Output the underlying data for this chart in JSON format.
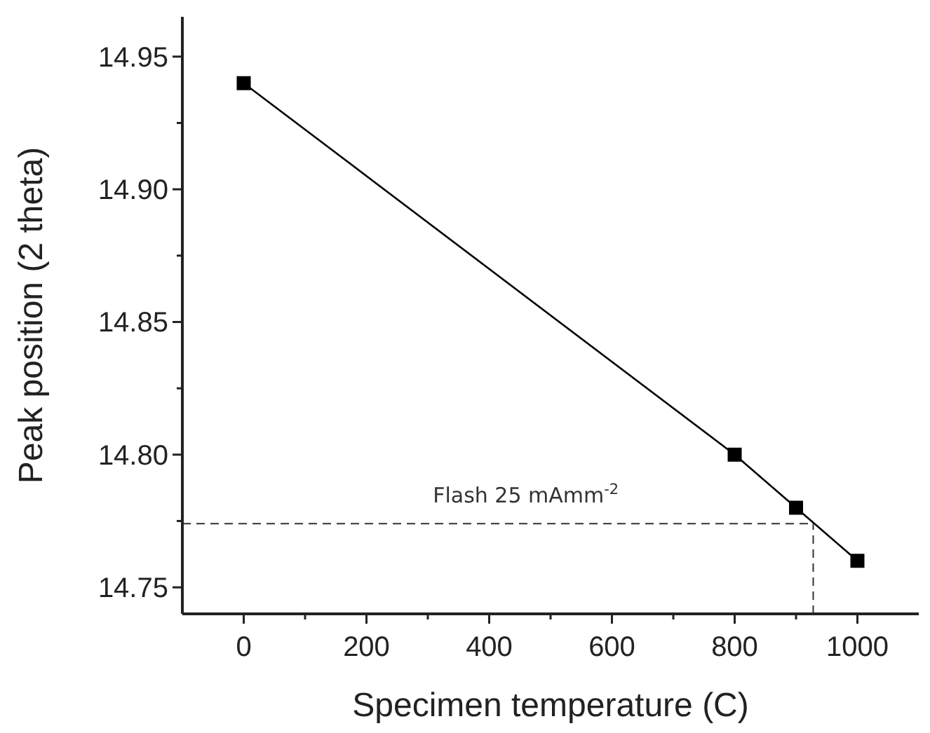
{
  "chart_data": {
    "type": "line",
    "xlabel": "Specimen temperature (C)",
    "ylabel": "Peak position (2 theta)",
    "x": [
      0,
      800,
      900,
      1000
    ],
    "series": [
      {
        "color": "#000000",
        "values": [
          14.94,
          14.8,
          14.78,
          14.76
        ]
      }
    ],
    "xlim": [
      -100,
      1100
    ],
    "xticks": [
      0,
      200,
      400,
      600,
      800,
      1000
    ],
    "ylim": [
      14.74,
      14.965
    ],
    "yticks": [
      14.75,
      {
        "value": 14.8,
        "label": "14.80"
      },
      14.85,
      {
        "value": 14.9,
        "label": "14.90"
      },
      14.95
    ],
    "marker": "square",
    "line_style": "solid",
    "grid": false,
    "ref_lines": [
      {
        "axis": "y",
        "value": 14.774,
        "label": "Flash 25 mAmm$^{-2}$",
        "line_style": "dashed",
        "color": "#333333"
      },
      {
        "axis": "x",
        "value": 928,
        "line_style": "dashed",
        "color": "#333333"
      }
    ]
  }
}
